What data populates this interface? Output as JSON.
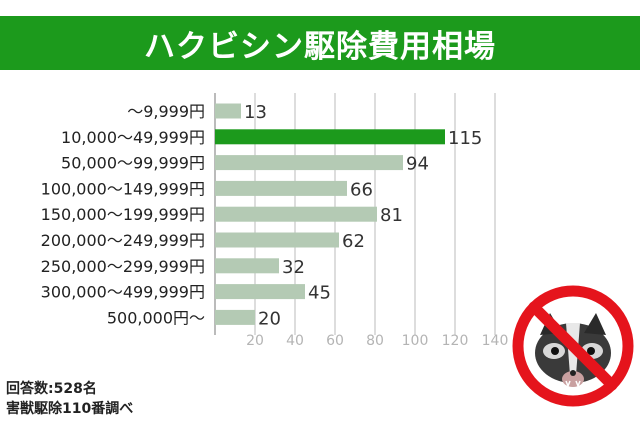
{
  "title": "ハクビシン駆除費用相場",
  "chart_data": {
    "type": "bar",
    "orientation": "horizontal",
    "categories": [
      "～9,999円",
      "10,000～49,999円",
      "50,000～99,999円",
      "100,000～149,999円",
      "150,000～199,999円",
      "200,000～249,999円",
      "250,000～299,999円",
      "300,000～499,999円",
      "500,000円～"
    ],
    "values": [
      13,
      115,
      94,
      66,
      81,
      62,
      32,
      45,
      20
    ],
    "value_labels": [
      "13",
      "115",
      "94",
      "66",
      "81",
      "62",
      "32",
      "45",
      "20"
    ],
    "highlight_index": 1,
    "xlim": [
      0,
      140
    ],
    "xticks": [
      20,
      40,
      60,
      80,
      100,
      120,
      140
    ],
    "xtick_labels": [
      "20",
      "40",
      "60",
      "80",
      "100",
      "120",
      "140"
    ],
    "grid": true,
    "colors": {
      "bar": "#b4cab4",
      "highlight": "#1c9a1c",
      "grid": "#dddddd"
    }
  },
  "footnotes": {
    "respondents": "回答数:528名",
    "source": "害獣駆除110番調べ"
  },
  "colors": {
    "title_bg": "#1c9a1c",
    "ban_red": "#e5141c"
  }
}
